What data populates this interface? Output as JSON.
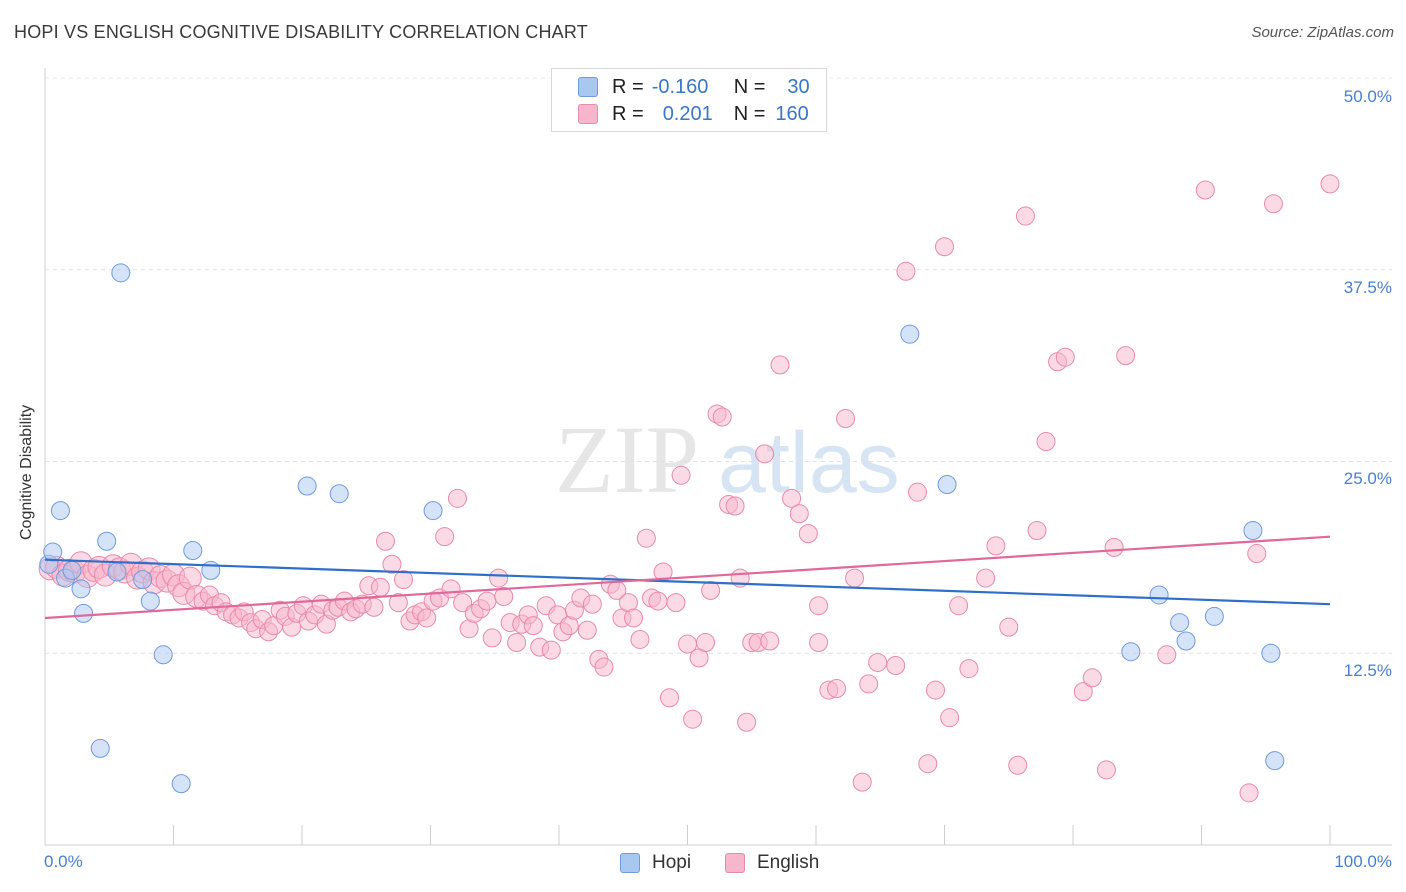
{
  "title": "HOPI VS ENGLISH COGNITIVE DISABILITY CORRELATION CHART",
  "source": "Source: ZipAtlas.com",
  "watermark": {
    "zip": "ZIP",
    "atlas": "atlas"
  },
  "legend": {
    "hopi": {
      "r_label": "R =",
      "r_value": "-0.160",
      "n_label": "N =",
      "n_value": "30"
    },
    "english": {
      "r_label": "R =",
      "r_value": "0.201",
      "n_label": "N =",
      "n_value": "160"
    }
  },
  "colors": {
    "hopi_fill": "#a9c8f0",
    "hopi_stroke": "#6f9be0",
    "hopi_line": "#2f6fcc",
    "english_fill": "#f7b6cc",
    "english_stroke": "#e98aab",
    "english_line": "#e0689a",
    "tick_text": "#4a7fd0"
  },
  "chart_data": {
    "type": "scatter",
    "title": "HOPI VS ENGLISH COGNITIVE DISABILITY CORRELATION CHART",
    "xlabel": "",
    "ylabel": "Cognitive Disability",
    "xlim": [
      0,
      100
    ],
    "ylim": [
      0,
      52
    ],
    "x_tick_labels": [
      "0.0%",
      "100.0%"
    ],
    "y_ticks": [
      12.5,
      25.0,
      37.5,
      50.0
    ],
    "y_tick_labels": [
      "12.5%",
      "25.0%",
      "37.5%",
      "50.0%"
    ],
    "legend_labels": [
      "Hopi",
      "English"
    ],
    "series": [
      {
        "name": "Hopi",
        "trend": {
          "x": [
            0,
            100
          ],
          "y": [
            18.6,
            15.7
          ]
        },
        "points": [
          [
            0.3,
            18.3
          ],
          [
            0.6,
            19.1
          ],
          [
            1.2,
            21.8
          ],
          [
            1.6,
            17.4
          ],
          [
            2.1,
            17.9
          ],
          [
            2.8,
            16.7
          ],
          [
            3.0,
            15.1
          ],
          [
            4.3,
            6.3
          ],
          [
            4.8,
            19.8
          ],
          [
            5.6,
            17.8
          ],
          [
            5.9,
            37.3
          ],
          [
            7.6,
            17.3
          ],
          [
            8.2,
            15.9
          ],
          [
            9.2,
            12.4
          ],
          [
            10.6,
            4.0
          ],
          [
            11.5,
            19.2
          ],
          [
            12.9,
            17.9
          ],
          [
            20.4,
            23.4
          ],
          [
            22.9,
            22.9
          ],
          [
            30.2,
            21.8
          ],
          [
            67.3,
            33.3
          ],
          [
            70.2,
            23.5
          ],
          [
            84.5,
            12.6
          ],
          [
            86.7,
            16.3
          ],
          [
            88.3,
            14.5
          ],
          [
            88.8,
            13.3
          ],
          [
            91.0,
            14.9
          ],
          [
            94.0,
            20.5
          ],
          [
            95.4,
            12.5
          ],
          [
            95.7,
            5.5
          ]
        ]
      },
      {
        "name": "English",
        "trend": {
          "x": [
            0,
            100
          ],
          "y": [
            14.8,
            20.1
          ]
        },
        "points": [
          [
            0.4,
            18.0
          ],
          [
            0.9,
            18.1
          ],
          [
            1.4,
            17.6
          ],
          [
            1.9,
            17.9
          ],
          [
            2.3,
            17.8
          ],
          [
            2.8,
            18.4
          ],
          [
            3.3,
            17.5
          ],
          [
            3.8,
            17.9
          ],
          [
            4.2,
            18.1
          ],
          [
            4.7,
            17.6
          ],
          [
            5.3,
            18.2
          ],
          [
            5.8,
            18.0
          ],
          [
            6.2,
            17.8
          ],
          [
            6.7,
            18.3
          ],
          [
            7.2,
            17.4
          ],
          [
            7.6,
            17.8
          ],
          [
            8.1,
            18.0
          ],
          [
            8.5,
            17.1
          ],
          [
            9.0,
            17.5
          ],
          [
            9.5,
            17.2
          ],
          [
            10.0,
            17.6
          ],
          [
            10.4,
            16.9
          ],
          [
            10.8,
            16.4
          ],
          [
            11.3,
            17.4
          ],
          [
            11.8,
            16.2
          ],
          [
            12.3,
            15.9
          ],
          [
            12.8,
            16.3
          ],
          [
            13.2,
            15.6
          ],
          [
            13.7,
            15.8
          ],
          [
            14.1,
            15.2
          ],
          [
            14.6,
            15.0
          ],
          [
            15.1,
            14.8
          ],
          [
            15.5,
            15.2
          ],
          [
            16.0,
            14.5
          ],
          [
            16.4,
            14.1
          ],
          [
            16.9,
            14.7
          ],
          [
            17.4,
            13.9
          ],
          [
            17.8,
            14.3
          ],
          [
            18.3,
            15.3
          ],
          [
            18.7,
            14.9
          ],
          [
            19.2,
            14.2
          ],
          [
            19.6,
            15.1
          ],
          [
            20.1,
            15.6
          ],
          [
            20.5,
            14.6
          ],
          [
            21.0,
            15.0
          ],
          [
            21.5,
            15.7
          ],
          [
            21.9,
            14.4
          ],
          [
            22.4,
            15.3
          ],
          [
            22.8,
            15.5
          ],
          [
            23.3,
            15.9
          ],
          [
            23.8,
            15.2
          ],
          [
            24.2,
            15.4
          ],
          [
            24.7,
            15.7
          ],
          [
            25.2,
            16.9
          ],
          [
            25.6,
            15.5
          ],
          [
            26.1,
            16.8
          ],
          [
            26.5,
            19.8
          ],
          [
            27.0,
            18.3
          ],
          [
            27.5,
            15.8
          ],
          [
            27.9,
            17.3
          ],
          [
            28.4,
            14.6
          ],
          [
            28.8,
            15.0
          ],
          [
            29.3,
            15.2
          ],
          [
            29.7,
            14.8
          ],
          [
            30.2,
            15.9
          ],
          [
            30.7,
            16.1
          ],
          [
            31.1,
            20.1
          ],
          [
            31.6,
            16.7
          ],
          [
            32.1,
            22.6
          ],
          [
            32.5,
            15.8
          ],
          [
            33.0,
            14.1
          ],
          [
            33.4,
            15.1
          ],
          [
            33.9,
            15.4
          ],
          [
            34.4,
            15.9
          ],
          [
            34.8,
            13.5
          ],
          [
            35.3,
            17.4
          ],
          [
            35.7,
            16.2
          ],
          [
            36.2,
            14.5
          ],
          [
            36.7,
            13.2
          ],
          [
            37.1,
            14.4
          ],
          [
            37.6,
            15.0
          ],
          [
            38.0,
            14.3
          ],
          [
            38.5,
            12.9
          ],
          [
            39.0,
            15.6
          ],
          [
            39.4,
            12.7
          ],
          [
            39.9,
            15.0
          ],
          [
            40.3,
            13.9
          ],
          [
            40.8,
            14.3
          ],
          [
            41.2,
            15.3
          ],
          [
            41.7,
            16.1
          ],
          [
            42.2,
            14.0
          ],
          [
            42.6,
            15.7
          ],
          [
            43.1,
            12.1
          ],
          [
            43.5,
            11.6
          ],
          [
            44.0,
            17.0
          ],
          [
            44.5,
            16.6
          ],
          [
            44.9,
            14.8
          ],
          [
            45.4,
            15.8
          ],
          [
            45.8,
            14.8
          ],
          [
            46.3,
            13.4
          ],
          [
            46.8,
            20.0
          ],
          [
            47.2,
            16.1
          ],
          [
            47.7,
            15.9
          ],
          [
            48.1,
            17.8
          ],
          [
            48.6,
            9.6
          ],
          [
            49.1,
            15.8
          ],
          [
            49.5,
            24.1
          ],
          [
            50.0,
            13.1
          ],
          [
            50.4,
            8.2
          ],
          [
            50.9,
            12.2
          ],
          [
            51.4,
            13.2
          ],
          [
            51.8,
            16.6
          ],
          [
            52.3,
            28.1
          ],
          [
            52.7,
            27.9
          ],
          [
            53.2,
            22.2
          ],
          [
            53.7,
            22.1
          ],
          [
            54.1,
            17.4
          ],
          [
            54.6,
            8.0
          ],
          [
            55.0,
            13.2
          ],
          [
            55.5,
            13.2
          ],
          [
            56.0,
            25.5
          ],
          [
            56.4,
            13.3
          ],
          [
            57.2,
            31.3
          ],
          [
            58.1,
            22.6
          ],
          [
            58.7,
            21.6
          ],
          [
            59.4,
            20.3
          ],
          [
            60.2,
            15.6
          ],
          [
            60.2,
            13.2
          ],
          [
            61.0,
            10.1
          ],
          [
            61.6,
            10.2
          ],
          [
            62.3,
            27.8
          ],
          [
            63.0,
            17.4
          ],
          [
            63.6,
            4.1
          ],
          [
            64.1,
            10.5
          ],
          [
            64.8,
            11.9
          ],
          [
            66.2,
            11.7
          ],
          [
            67.0,
            37.4
          ],
          [
            67.9,
            23.0
          ],
          [
            68.7,
            5.3
          ],
          [
            69.3,
            10.1
          ],
          [
            70.0,
            39.0
          ],
          [
            70.4,
            8.3
          ],
          [
            71.1,
            15.6
          ],
          [
            71.9,
            11.5
          ],
          [
            73.2,
            17.4
          ],
          [
            74.0,
            19.5
          ],
          [
            75.0,
            14.2
          ],
          [
            75.7,
            5.2
          ],
          [
            76.3,
            41.0
          ],
          [
            77.2,
            20.5
          ],
          [
            77.9,
            26.3
          ],
          [
            78.8,
            31.5
          ],
          [
            79.4,
            31.8
          ],
          [
            80.8,
            10.0
          ],
          [
            81.5,
            10.9
          ],
          [
            82.6,
            4.9
          ],
          [
            83.2,
            19.4
          ],
          [
            84.1,
            31.9
          ],
          [
            87.3,
            12.4
          ],
          [
            90.3,
            42.7
          ],
          [
            93.7,
            3.4
          ],
          [
            94.3,
            19.0
          ],
          [
            95.6,
            41.8
          ],
          [
            100.0,
            43.1
          ]
        ]
      }
    ]
  }
}
